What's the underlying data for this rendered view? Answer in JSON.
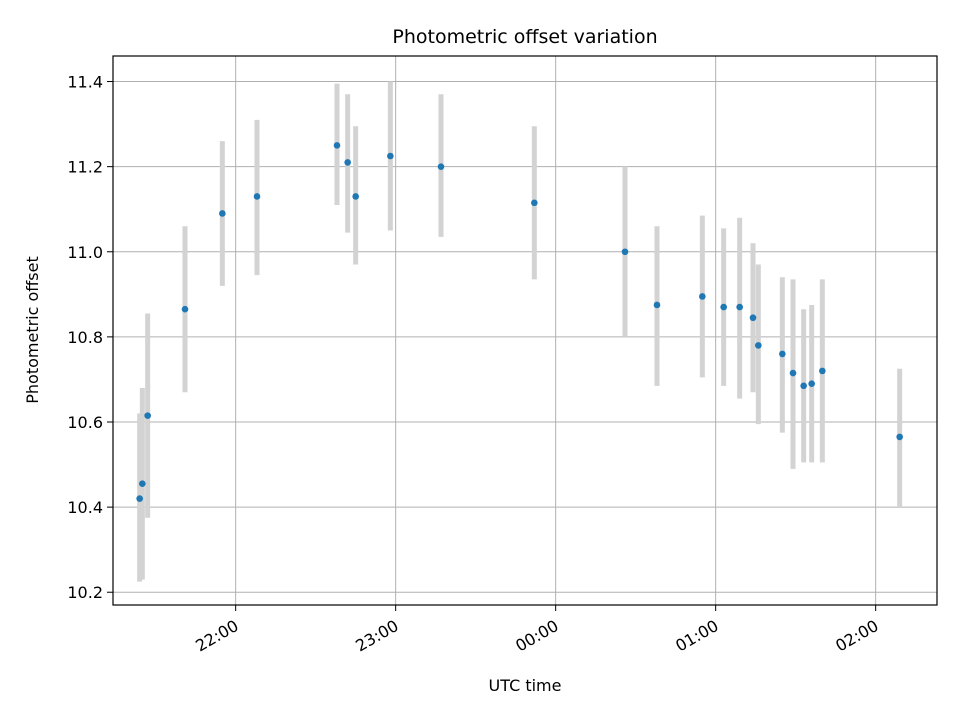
{
  "chart_data": {
    "type": "scatter",
    "title": "Photometric offset variation",
    "xlabel": "UTC time",
    "ylabel": "Photometric offset",
    "grid": true,
    "x_is_time": true,
    "xlim": [
      "21:14",
      "02:23"
    ],
    "ylim": [
      10.17,
      11.46
    ],
    "x_ticks": [
      "22:00",
      "23:00",
      "00:00",
      "01:00",
      "02:00"
    ],
    "y_ticks": [
      10.2,
      10.4,
      10.6,
      10.8,
      11.0,
      11.2,
      11.4
    ],
    "point_color": "#1f77b4",
    "errorbar_color": "#d3d3d3",
    "series": [
      {
        "points": [
          {
            "t": "21:24",
            "y": 10.42,
            "lo": 10.225,
            "hi": 10.62
          },
          {
            "t": "21:25",
            "y": 10.455,
            "lo": 10.23,
            "hi": 10.68
          },
          {
            "t": "21:27",
            "y": 10.615,
            "lo": 10.375,
            "hi": 10.855
          },
          {
            "t": "21:41",
            "y": 10.865,
            "lo": 10.67,
            "hi": 11.06
          },
          {
            "t": "21:55",
            "y": 11.09,
            "lo": 10.92,
            "hi": 11.26
          },
          {
            "t": "22:08",
            "y": 11.13,
            "lo": 10.945,
            "hi": 11.31
          },
          {
            "t": "22:38",
            "y": 11.25,
            "lo": 11.11,
            "hi": 11.395
          },
          {
            "t": "22:42",
            "y": 11.21,
            "lo": 11.045,
            "hi": 11.37
          },
          {
            "t": "22:45",
            "y": 11.13,
            "lo": 10.97,
            "hi": 11.295
          },
          {
            "t": "22:58",
            "y": 11.225,
            "lo": 11.05,
            "hi": 11.4
          },
          {
            "t": "23:17",
            "y": 11.2,
            "lo": 11.035,
            "hi": 11.37
          },
          {
            "t": "23:52",
            "y": 11.115,
            "lo": 10.935,
            "hi": 11.295
          },
          {
            "t": "00:26",
            "y": 11.0,
            "lo": 10.8,
            "hi": 11.2
          },
          {
            "t": "00:38",
            "y": 10.875,
            "lo": 10.685,
            "hi": 11.06
          },
          {
            "t": "00:55",
            "y": 10.895,
            "lo": 10.705,
            "hi": 11.085
          },
          {
            "t": "01:03",
            "y": 10.87,
            "lo": 10.685,
            "hi": 11.055
          },
          {
            "t": "01:09",
            "y": 10.87,
            "lo": 10.655,
            "hi": 11.08
          },
          {
            "t": "01:14",
            "y": 10.845,
            "lo": 10.67,
            "hi": 11.02
          },
          {
            "t": "01:16",
            "y": 10.78,
            "lo": 10.595,
            "hi": 10.97
          },
          {
            "t": "01:25",
            "y": 10.76,
            "lo": 10.575,
            "hi": 10.94
          },
          {
            "t": "01:29",
            "y": 10.715,
            "lo": 10.49,
            "hi": 10.935
          },
          {
            "t": "01:33",
            "y": 10.685,
            "lo": 10.505,
            "hi": 10.865
          },
          {
            "t": "01:36",
            "y": 10.69,
            "lo": 10.505,
            "hi": 10.875
          },
          {
            "t": "01:40",
            "y": 10.72,
            "lo": 10.505,
            "hi": 10.935
          },
          {
            "t": "02:09",
            "y": 10.565,
            "lo": 10.4,
            "hi": 10.725
          }
        ]
      }
    ]
  }
}
